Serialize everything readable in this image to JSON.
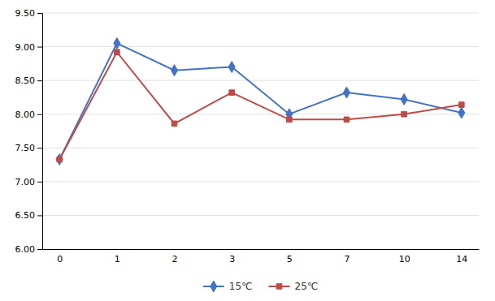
{
  "chart_data": {
    "type": "line",
    "categories": [
      "0",
      "1",
      "2",
      "3",
      "5",
      "7",
      "10",
      "14"
    ],
    "series": [
      {
        "name": "15℃",
        "color": "#4472C4",
        "marker": "diamond",
        "values": [
          7.33,
          9.05,
          8.65,
          8.7,
          8.0,
          8.32,
          8.22,
          8.02
        ]
      },
      {
        "name": "25℃",
        "color": "#BE4B48",
        "marker": "square",
        "values": [
          7.33,
          8.92,
          7.86,
          8.32,
          7.92,
          7.92,
          8.0,
          8.14
        ]
      }
    ],
    "ylim": [
      6.0,
      9.5
    ],
    "yticks": [
      {
        "value": 6.0,
        "label": "6.00"
      },
      {
        "value": 6.5,
        "label": "6.50"
      },
      {
        "value": 7.0,
        "label": "7.00"
      },
      {
        "value": 7.5,
        "label": "7.50"
      },
      {
        "value": 8.0,
        "label": "8.00"
      },
      {
        "value": 8.5,
        "label": "8.50"
      },
      {
        "value": 9.0,
        "label": "9.00"
      },
      {
        "value": 9.5,
        "label": "9.50"
      }
    ],
    "grid": true,
    "legend": "bottom"
  }
}
